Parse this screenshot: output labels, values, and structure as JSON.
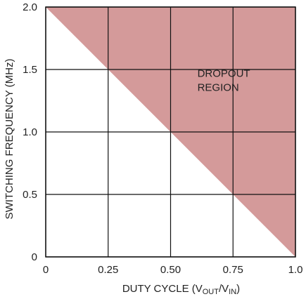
{
  "chart_data": {
    "type": "area",
    "xlabel_parts": [
      "DUTY CYCLE (V",
      "OUT",
      "/V",
      "IN",
      ")"
    ],
    "ylabel": "SWITCHING FREQUENCY (MHz)",
    "xlim": [
      0,
      1.0
    ],
    "ylim": [
      0,
      2.0
    ],
    "x_ticks": [
      {
        "value": 0,
        "label": "0"
      },
      {
        "value": 0.25,
        "label": "0.25"
      },
      {
        "value": 0.5,
        "label": "0.50"
      },
      {
        "value": 0.75,
        "label": "0.75"
      },
      {
        "value": 1.0,
        "label": "1.0"
      }
    ],
    "y_ticks": [
      {
        "value": 0,
        "label": "0"
      },
      {
        "value": 0.5,
        "label": "0.5"
      },
      {
        "value": 1.0,
        "label": "1.0"
      },
      {
        "value": 1.5,
        "label": "1.5"
      },
      {
        "value": 2.0,
        "label": "2.0"
      }
    ],
    "grid": true,
    "region": {
      "label_lines": [
        "DROPOUT",
        "REGION"
      ],
      "label_at": [
        0.72,
        1.35
      ],
      "boundary": [
        {
          "x": 0,
          "y": 2.0
        },
        {
          "x": 1.0,
          "y": 0
        }
      ],
      "fill_color": "#d49a9a"
    },
    "grid_color": "#111111"
  }
}
